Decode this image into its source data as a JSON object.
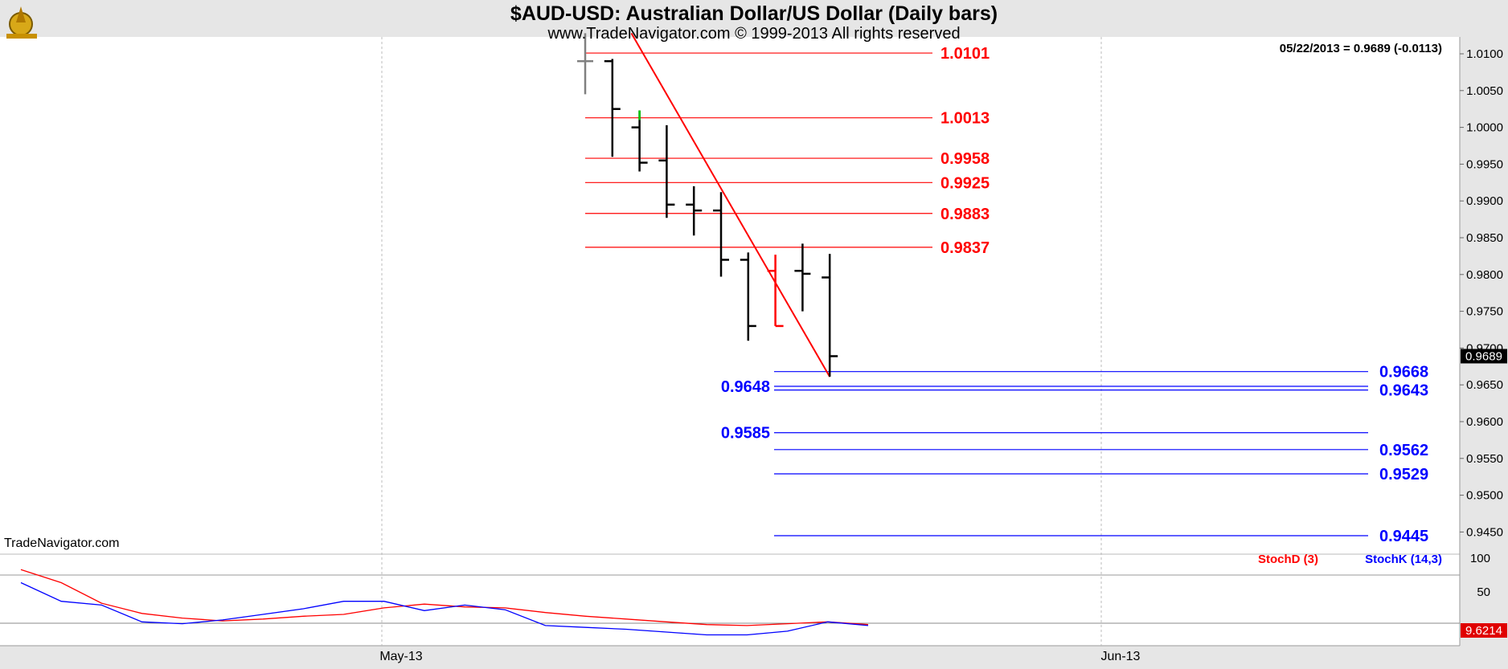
{
  "header": {
    "title": "$AUD-USD:  Australian Dollar/US Dollar  (Daily bars)",
    "subtitle": "www.TradeNavigator.com © 1999-2013 All rights reserved",
    "last_value_text": "05/22/2013 = 0.9689 (-0.0113)",
    "watermark": "TradeNavigator.com"
  },
  "colors": {
    "background": "#ffffff",
    "frame": "#e6e6e6",
    "bar": "#000000",
    "resistance": "#ff0000",
    "support": "#0000ff",
    "stochD": "#ff0000",
    "stochK": "#0000ff"
  },
  "chart_data": [
    {
      "type": "ohlc",
      "title": "$AUD-USD:  Australian Dollar/US Dollar  (Daily bars)",
      "ylim": [
        0.9405,
        1.0128
      ],
      "y_ticks": [
        "1.0100",
        "1.0050",
        "1.0000",
        "0.9950",
        "0.9900",
        "0.9850",
        "0.9800",
        "0.9750",
        "0.9700",
        "0.9650",
        "0.9600",
        "0.9550",
        "0.9500",
        "0.9450"
      ],
      "x_ticks": [
        "May-13",
        "Jun-13"
      ],
      "last_price_label": "0.9689",
      "bars": [
        {
          "open": 1.009,
          "high": 1.0128,
          "low": 1.0045,
          "close": 1.009
        },
        {
          "open": 1.009,
          "high": 1.0093,
          "low": 0.996,
          "close": 1.0025
        },
        {
          "open": 1.0,
          "high": 1.0023,
          "low": 0.994,
          "close": 0.9952
        },
        {
          "open": 0.9955,
          "high": 1.0003,
          "low": 0.9877,
          "close": 0.9895
        },
        {
          "open": 0.9895,
          "high": 0.992,
          "low": 0.9853,
          "close": 0.9887
        },
        {
          "open": 0.9887,
          "high": 0.9912,
          "low": 0.9797,
          "close": 0.982
        },
        {
          "open": 0.982,
          "high": 0.983,
          "low": 0.971,
          "close": 0.973
        },
        {
          "open": 0.9805,
          "high": 0.9827,
          "low": 0.973,
          "close": 0.973
        },
        {
          "open": 0.9805,
          "high": 0.9842,
          "low": 0.975,
          "close": 0.9801
        },
        {
          "open": 0.9796,
          "high": 0.9828,
          "low": 0.9661,
          "close": 0.9689
        }
      ],
      "resistance_levels": [
        "1.0101",
        "1.0013",
        "0.9958",
        "0.9925",
        "0.9883",
        "0.9837"
      ],
      "support_levels_right": [
        "0.9668",
        "0.9643",
        "0.9562",
        "0.9529",
        "0.9445"
      ],
      "support_levels_left": [
        "0.9648",
        "0.9585"
      ],
      "trendline": [
        {
          "bar": 1.7,
          "value": 1.0128
        },
        {
          "bar": 9,
          "value": 0.9661
        }
      ]
    },
    {
      "type": "line",
      "series": [
        {
          "name": "StochD (3)",
          "values": [
            74,
            60,
            38,
            27,
            22,
            19,
            21,
            24,
            26,
            33,
            37,
            34,
            33,
            28,
            24,
            21,
            18,
            15,
            14,
            16,
            18,
            15
          ]
        },
        {
          "name": "StochK (14,3)",
          "values": [
            60,
            40,
            36,
            18,
            16,
            20,
            26,
            32,
            40,
            40,
            30,
            36,
            31,
            14,
            12,
            10,
            7,
            4,
            4,
            8,
            18,
            14
          ]
        }
      ],
      "ylim": [
        0,
        100
      ],
      "y_ticks": [
        "100",
        "50"
      ],
      "last_value_label": "9.6214"
    }
  ]
}
